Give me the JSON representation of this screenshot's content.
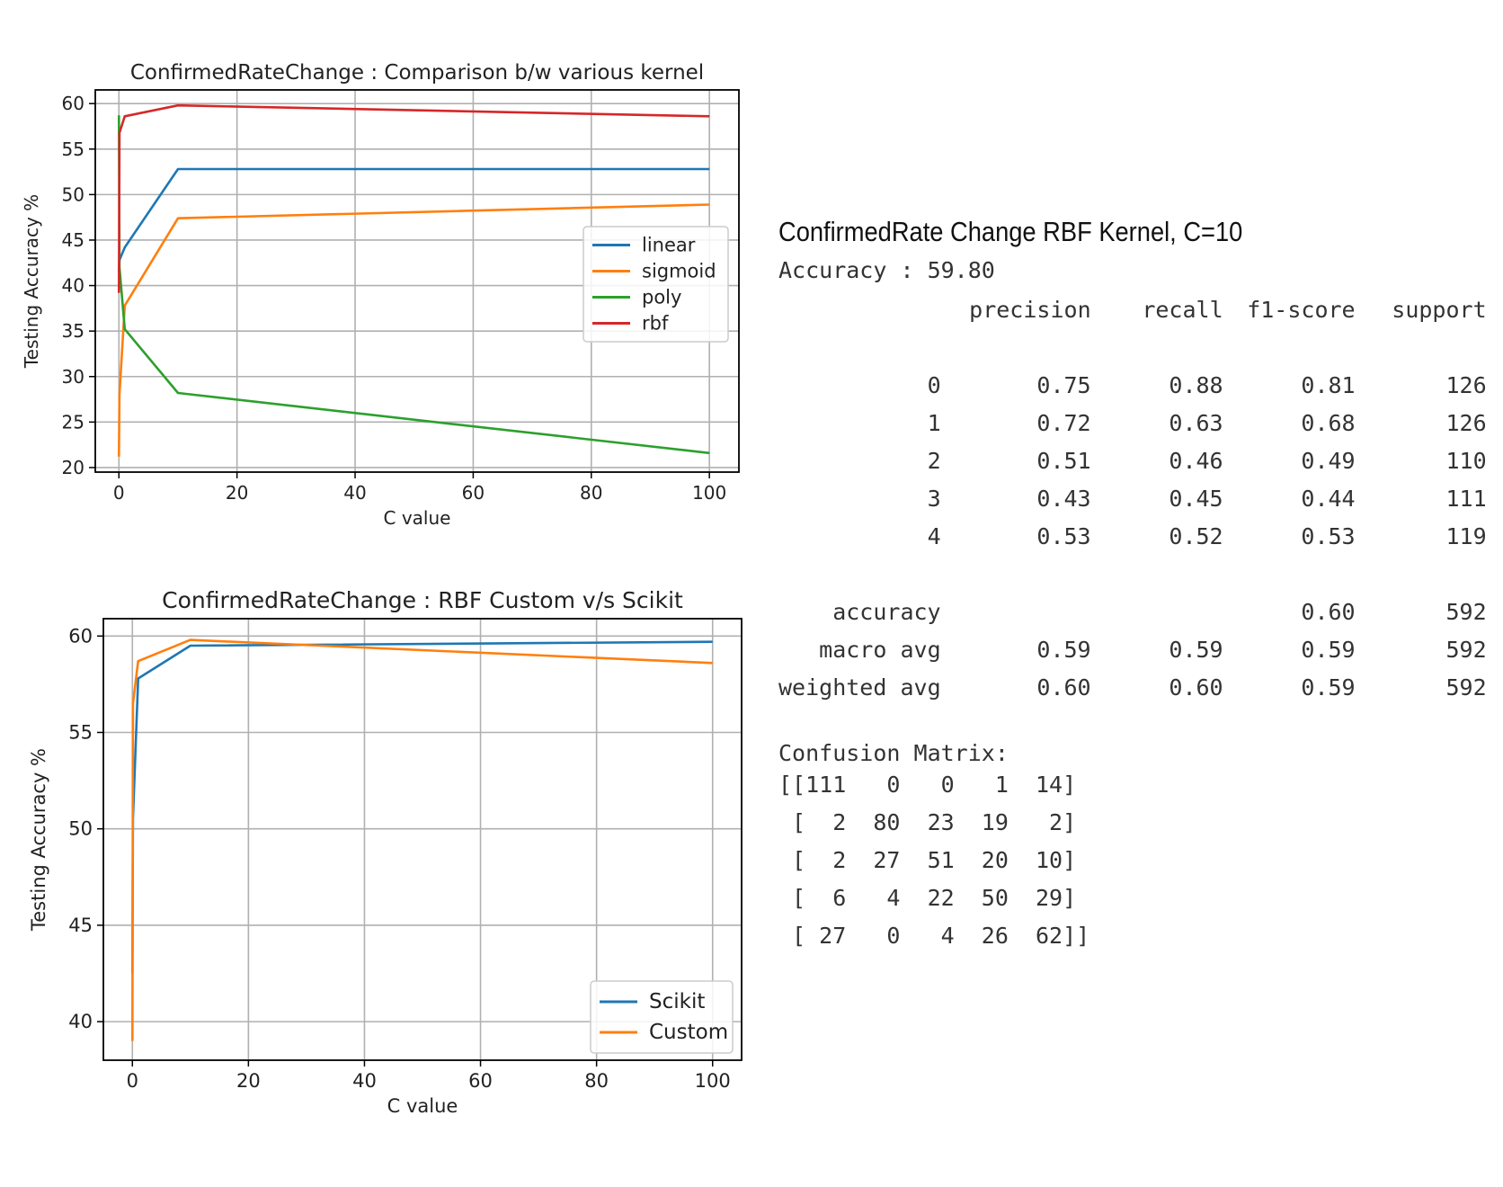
{
  "chart_data": [
    {
      "type": "line",
      "title": "ConfirmedRateChange : Comparison b/w various kernel",
      "xlabel": "C value",
      "ylabel": "Testing Accuracy %",
      "xlim": [
        -4,
        105
      ],
      "ylim": [
        19.5,
        61.5
      ],
      "xticks": [
        0,
        20,
        40,
        60,
        80,
        100
      ],
      "yticks": [
        20,
        25,
        30,
        35,
        40,
        45,
        50,
        55,
        60
      ],
      "grid": true,
      "legend_position": "center-right",
      "series": [
        {
          "name": "linear",
          "color": "#1f77b4",
          "x": [
            0.01,
            0.1,
            1,
            10,
            100
          ],
          "y": [
            41.5,
            42.8,
            44.2,
            52.8,
            52.8
          ]
        },
        {
          "name": "sigmoid",
          "color": "#ff7f0e",
          "x": [
            0.01,
            0.1,
            1,
            10,
            100
          ],
          "y": [
            21.2,
            28.0,
            37.8,
            47.4,
            48.9
          ]
        },
        {
          "name": "poly",
          "color": "#2ca02c",
          "x": [
            0.01,
            0.1,
            1,
            10,
            100
          ],
          "y": [
            58.7,
            42.0,
            35.2,
            28.2,
            21.6
          ]
        },
        {
          "name": "rbf",
          "color": "#d62728",
          "x": [
            0.01,
            0.1,
            1,
            10,
            100
          ],
          "y": [
            39.2,
            56.8,
            58.6,
            59.8,
            58.6
          ]
        }
      ]
    },
    {
      "type": "line",
      "title": "ConfirmedRateChange : RBF Custom v/s Scikit",
      "xlabel": "C value",
      "ylabel": "Testing Accuracy %",
      "xlim": [
        -5,
        105
      ],
      "ylim": [
        38,
        60.9
      ],
      "xticks": [
        0,
        20,
        40,
        60,
        80,
        100
      ],
      "yticks": [
        40,
        45,
        50,
        55,
        60
      ],
      "grid": true,
      "legend_position": "lower-right",
      "series": [
        {
          "name": "Scikit",
          "color": "#1f77b4",
          "x": [
            0.01,
            0.1,
            1,
            10,
            100
          ],
          "y": [
            42.5,
            50.5,
            57.8,
            59.5,
            59.7
          ]
        },
        {
          "name": "Custom",
          "color": "#ff7f0e",
          "x": [
            0.01,
            0.1,
            1,
            10,
            100
          ],
          "y": [
            39.0,
            56.5,
            58.7,
            59.8,
            58.6
          ]
        }
      ]
    }
  ],
  "report": {
    "title": "ConfirmedRate Change RBF Kernel, C=10",
    "accuracy_line": "Accuracy : 59.80",
    "headers": [
      "precision",
      "recall",
      "f1-score",
      "support"
    ],
    "rows": [
      {
        "label": "0",
        "precision": "0.75",
        "recall": "0.88",
        "f1": "0.81",
        "support": "126"
      },
      {
        "label": "1",
        "precision": "0.72",
        "recall": "0.63",
        "f1": "0.68",
        "support": "126"
      },
      {
        "label": "2",
        "precision": "0.51",
        "recall": "0.46",
        "f1": "0.49",
        "support": "110"
      },
      {
        "label": "3",
        "precision": "0.43",
        "recall": "0.45",
        "f1": "0.44",
        "support": "111"
      },
      {
        "label": "4",
        "precision": "0.53",
        "recall": "0.52",
        "f1": "0.53",
        "support": "119"
      }
    ],
    "summary": [
      {
        "label": "accuracy",
        "precision": "",
        "recall": "",
        "f1": "0.60",
        "support": "592"
      },
      {
        "label": "macro avg",
        "precision": "0.59",
        "recall": "0.59",
        "f1": "0.59",
        "support": "592"
      },
      {
        "label": "weighted avg",
        "precision": "0.60",
        "recall": "0.60",
        "f1": "0.59",
        "support": "592"
      }
    ],
    "confusion_title": "Confusion Matrix:",
    "confusion_lines": [
      "[[111   0   0   1  14]",
      " [  2  80  23  19   2]",
      " [  2  27  51  20  10]",
      " [  6   4  22  50  29]",
      " [ 27   0   4  26  62]]"
    ]
  }
}
